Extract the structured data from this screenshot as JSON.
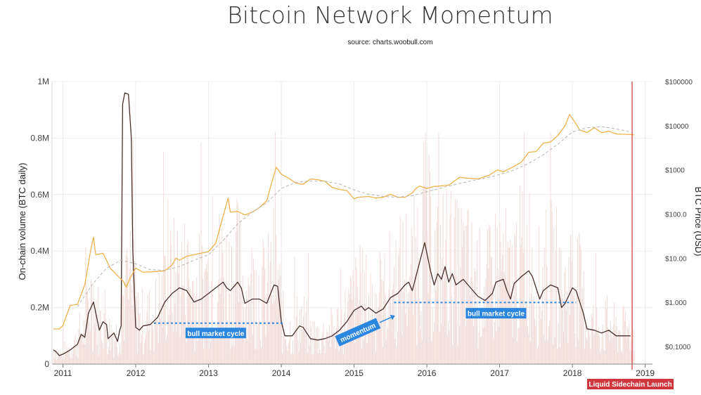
{
  "title": "Bitcoin Network Momentum",
  "subtitle": "source: charts.woobull.com",
  "chart_data": {
    "type": "line",
    "title": "Bitcoin Network Momentum",
    "subtitle": "source: charts.woobull.com",
    "ylabel": "On-chain volume (BTC daily)",
    "y2label": "BTC Price (USD)",
    "ylim": [
      0,
      1000000
    ],
    "y2lim": [
      0.04,
      100000
    ],
    "y2scale": "log",
    "xlim": [
      2010.85,
      2019.1
    ],
    "grid": true,
    "legend": "none",
    "y_ticks": [
      {
        "value": 0,
        "label": "0"
      },
      {
        "value": 200000,
        "label": "0.2M"
      },
      {
        "value": 400000,
        "label": "0.4M"
      },
      {
        "value": 600000,
        "label": "0.6M"
      },
      {
        "value": 800000,
        "label": "0.8M"
      },
      {
        "value": 1000000,
        "label": "1M"
      }
    ],
    "y2_ticks": [
      {
        "value": 0.1,
        "label": "$0.1000"
      },
      {
        "value": 1,
        "label": "$1.000"
      },
      {
        "value": 10,
        "label": "$10.00"
      },
      {
        "value": 100,
        "label": "$100.0"
      },
      {
        "value": 1000,
        "label": "$1000"
      },
      {
        "value": 10000,
        "label": "$10000"
      },
      {
        "value": 100000,
        "label": "$100000"
      }
    ],
    "x_ticks": [
      {
        "value": 2011,
        "label": "2011"
      },
      {
        "value": 2012,
        "label": "2012"
      },
      {
        "value": 2013,
        "label": "2013"
      },
      {
        "value": 2014,
        "label": "2014"
      },
      {
        "value": 2015,
        "label": "2015"
      },
      {
        "value": 2016,
        "label": "2016"
      },
      {
        "value": 2017,
        "label": "2017"
      },
      {
        "value": 2018,
        "label": "2018"
      },
      {
        "value": 2019,
        "label": "2019"
      }
    ],
    "colors": {
      "volume_momentum": "#4a2f2a",
      "price": "#f0b24a",
      "price_trend": "#b5b5b5",
      "daily_volume": "#f1ddd9",
      "grid": "#ececec",
      "annotation": "#2b86e0",
      "launch": "#d0363e"
    },
    "series": [
      {
        "key": "volume_momentum",
        "axis": "left",
        "points": [
          [
            2010.87,
            50000
          ],
          [
            2010.9,
            45000
          ],
          [
            2010.95,
            30000
          ],
          [
            2011.0,
            35000
          ],
          [
            2011.1,
            50000
          ],
          [
            2011.2,
            70000
          ],
          [
            2011.25,
            105000
          ],
          [
            2011.3,
            95000
          ],
          [
            2011.35,
            180000
          ],
          [
            2011.42,
            220000
          ],
          [
            2011.5,
            120000
          ],
          [
            2011.55,
            150000
          ],
          [
            2011.6,
            140000
          ],
          [
            2011.62,
            90000
          ],
          [
            2011.7,
            110000
          ],
          [
            2011.75,
            80000
          ],
          [
            2011.78,
            120000
          ],
          [
            2011.8,
            135000
          ],
          [
            2011.82,
            920000
          ],
          [
            2011.85,
            960000
          ],
          [
            2011.9,
            955000
          ],
          [
            2011.94,
            800000
          ],
          [
            2011.96,
            400000
          ],
          [
            2012.0,
            130000
          ],
          [
            2012.05,
            120000
          ],
          [
            2012.1,
            135000
          ],
          [
            2012.2,
            140000
          ],
          [
            2012.3,
            165000
          ],
          [
            2012.4,
            220000
          ],
          [
            2012.5,
            250000
          ],
          [
            2012.6,
            270000
          ],
          [
            2012.7,
            260000
          ],
          [
            2012.75,
            240000
          ],
          [
            2012.8,
            220000
          ],
          [
            2012.9,
            230000
          ],
          [
            2013.0,
            250000
          ],
          [
            2013.1,
            270000
          ],
          [
            2013.2,
            290000
          ],
          [
            2013.25,
            270000
          ],
          [
            2013.3,
            260000
          ],
          [
            2013.35,
            275000
          ],
          [
            2013.4,
            290000
          ],
          [
            2013.45,
            270000
          ],
          [
            2013.5,
            215000
          ],
          [
            2013.6,
            230000
          ],
          [
            2013.7,
            230000
          ],
          [
            2013.8,
            215000
          ],
          [
            2013.9,
            280000
          ],
          [
            2013.95,
            275000
          ],
          [
            2014.0,
            150000
          ],
          [
            2014.05,
            100000
          ],
          [
            2014.1,
            100000
          ],
          [
            2014.15,
            100000
          ],
          [
            2014.25,
            135000
          ],
          [
            2014.3,
            130000
          ],
          [
            2014.4,
            90000
          ],
          [
            2014.5,
            85000
          ],
          [
            2014.6,
            90000
          ],
          [
            2014.7,
            100000
          ],
          [
            2014.8,
            120000
          ],
          [
            2014.9,
            150000
          ],
          [
            2015.0,
            190000
          ],
          [
            2015.1,
            205000
          ],
          [
            2015.15,
            190000
          ],
          [
            2015.2,
            200000
          ],
          [
            2015.3,
            180000
          ],
          [
            2015.4,
            195000
          ],
          [
            2015.5,
            235000
          ],
          [
            2015.6,
            250000
          ],
          [
            2015.7,
            280000
          ],
          [
            2015.75,
            290000
          ],
          [
            2015.8,
            260000
          ],
          [
            2015.9,
            360000
          ],
          [
            2015.97,
            430000
          ],
          [
            2016.05,
            330000
          ],
          [
            2016.1,
            280000
          ],
          [
            2016.15,
            320000
          ],
          [
            2016.2,
            300000
          ],
          [
            2016.25,
            345000
          ],
          [
            2016.3,
            290000
          ],
          [
            2016.35,
            320000
          ],
          [
            2016.4,
            280000
          ],
          [
            2016.5,
            300000
          ],
          [
            2016.6,
            270000
          ],
          [
            2016.7,
            240000
          ],
          [
            2016.8,
            225000
          ],
          [
            2016.9,
            250000
          ],
          [
            2016.95,
            290000
          ],
          [
            2017.05,
            300000
          ],
          [
            2017.1,
            260000
          ],
          [
            2017.15,
            230000
          ],
          [
            2017.2,
            285000
          ],
          [
            2017.3,
            310000
          ],
          [
            2017.4,
            330000
          ],
          [
            2017.45,
            310000
          ],
          [
            2017.5,
            270000
          ],
          [
            2017.55,
            230000
          ],
          [
            2017.6,
            260000
          ],
          [
            2017.7,
            280000
          ],
          [
            2017.8,
            270000
          ],
          [
            2017.85,
            200000
          ],
          [
            2017.9,
            215000
          ],
          [
            2018.0,
            270000
          ],
          [
            2018.05,
            260000
          ],
          [
            2018.1,
            220000
          ],
          [
            2018.15,
            180000
          ],
          [
            2018.2,
            125000
          ],
          [
            2018.3,
            120000
          ],
          [
            2018.4,
            110000
          ],
          [
            2018.5,
            120000
          ],
          [
            2018.6,
            100000
          ],
          [
            2018.7,
            100000
          ],
          [
            2018.8,
            100000
          ]
        ]
      },
      {
        "key": "price",
        "axis": "right",
        "points": [
          [
            2010.87,
            0.25
          ],
          [
            2010.95,
            0.25
          ],
          [
            2011.0,
            0.3
          ],
          [
            2011.1,
            0.85
          ],
          [
            2011.2,
            0.9
          ],
          [
            2011.3,
            2.5
          ],
          [
            2011.38,
            15
          ],
          [
            2011.42,
            30
          ],
          [
            2011.45,
            12
          ],
          [
            2011.55,
            13
          ],
          [
            2011.65,
            6
          ],
          [
            2011.75,
            4
          ],
          [
            2011.83,
            3
          ],
          [
            2011.87,
            2.2
          ],
          [
            2011.92,
            3.5
          ],
          [
            2012.0,
            6
          ],
          [
            2012.1,
            4.8
          ],
          [
            2012.2,
            4.9
          ],
          [
            2012.3,
            5
          ],
          [
            2012.4,
            5.2
          ],
          [
            2012.5,
            7
          ],
          [
            2012.55,
            10
          ],
          [
            2012.6,
            9
          ],
          [
            2012.7,
            11
          ],
          [
            2012.8,
            12
          ],
          [
            2012.9,
            13
          ],
          [
            2013.0,
            14
          ],
          [
            2013.1,
            22
          ],
          [
            2013.2,
            90
          ],
          [
            2013.27,
            230
          ],
          [
            2013.3,
            110
          ],
          [
            2013.4,
            115
          ],
          [
            2013.5,
            95
          ],
          [
            2013.6,
            110
          ],
          [
            2013.7,
            140
          ],
          [
            2013.8,
            200
          ],
          [
            2013.85,
            400
          ],
          [
            2013.93,
            1150
          ],
          [
            2014.0,
            800
          ],
          [
            2014.1,
            650
          ],
          [
            2014.2,
            500
          ],
          [
            2014.3,
            470
          ],
          [
            2014.4,
            620
          ],
          [
            2014.5,
            600
          ],
          [
            2014.6,
            550
          ],
          [
            2014.7,
            400
          ],
          [
            2014.8,
            360
          ],
          [
            2014.9,
            340
          ],
          [
            2015.0,
            220
          ],
          [
            2015.05,
            240
          ],
          [
            2015.2,
            250
          ],
          [
            2015.3,
            230
          ],
          [
            2015.4,
            240
          ],
          [
            2015.5,
            280
          ],
          [
            2015.6,
            240
          ],
          [
            2015.7,
            240
          ],
          [
            2015.8,
            300
          ],
          [
            2015.85,
            380
          ],
          [
            2015.9,
            430
          ],
          [
            2016.0,
            380
          ],
          [
            2016.1,
            420
          ],
          [
            2016.3,
            450
          ],
          [
            2016.45,
            680
          ],
          [
            2016.55,
            650
          ],
          [
            2016.7,
            620
          ],
          [
            2016.85,
            750
          ],
          [
            2016.97,
            1000
          ],
          [
            2017.05,
            900
          ],
          [
            2017.2,
            1200
          ],
          [
            2017.3,
            1500
          ],
          [
            2017.4,
            2500
          ],
          [
            2017.5,
            2600
          ],
          [
            2017.6,
            4000
          ],
          [
            2017.7,
            4300
          ],
          [
            2017.8,
            6000
          ],
          [
            2017.9,
            10000
          ],
          [
            2017.96,
            18000
          ],
          [
            2018.05,
            11000
          ],
          [
            2018.1,
            8000
          ],
          [
            2018.2,
            7000
          ],
          [
            2018.3,
            9000
          ],
          [
            2018.4,
            7000
          ],
          [
            2018.5,
            7500
          ],
          [
            2018.6,
            6500
          ],
          [
            2018.7,
            6400
          ],
          [
            2018.8,
            6300
          ],
          [
            2018.85,
            6200
          ]
        ]
      },
      {
        "key": "price_trend",
        "axis": "right",
        "points": [
          [
            2011.2,
            0.8
          ],
          [
            2011.4,
            2.5
          ],
          [
            2011.6,
            6
          ],
          [
            2011.8,
            9
          ],
          [
            2012.0,
            7.5
          ],
          [
            2012.2,
            5.5
          ],
          [
            2012.4,
            5.3
          ],
          [
            2012.6,
            6.5
          ],
          [
            2012.8,
            9
          ],
          [
            2013.0,
            12
          ],
          [
            2013.2,
            25
          ],
          [
            2013.4,
            60
          ],
          [
            2013.6,
            110
          ],
          [
            2013.8,
            180
          ],
          [
            2014.0,
            380
          ],
          [
            2014.2,
            520
          ],
          [
            2014.4,
            560
          ],
          [
            2014.6,
            550
          ],
          [
            2014.8,
            480
          ],
          [
            2015.0,
            350
          ],
          [
            2015.2,
            280
          ],
          [
            2015.4,
            250
          ],
          [
            2015.6,
            240
          ],
          [
            2015.8,
            260
          ],
          [
            2016.0,
            320
          ],
          [
            2016.2,
            390
          ],
          [
            2016.4,
            470
          ],
          [
            2016.6,
            560
          ],
          [
            2016.8,
            650
          ],
          [
            2017.0,
            780
          ],
          [
            2017.2,
            1000
          ],
          [
            2017.4,
            1400
          ],
          [
            2017.6,
            2200
          ],
          [
            2017.8,
            3800
          ],
          [
            2018.0,
            7200
          ],
          [
            2018.2,
            9000
          ],
          [
            2018.4,
            9500
          ],
          [
            2018.6,
            8500
          ],
          [
            2018.8,
            7200
          ]
        ]
      }
    ],
    "annotations": [
      {
        "key": "bull_market_cycle_1",
        "label": "bull market cycle",
        "x_start": 2012.25,
        "x_end": 2014.02,
        "y": 145000,
        "label_x": 2013.1,
        "label_y": 110000
      },
      {
        "key": "bull_market_cycle_2",
        "label": "bull market cycle",
        "x_start": 2015.55,
        "x_end": 2018.05,
        "y": 218000,
        "label_x": 2016.95,
        "label_y": 180000
      },
      {
        "key": "momentum",
        "label": "momentum",
        "x_start": 2014.78,
        "x_end": 2015.5,
        "y_start": 78000,
        "y_end": 160000
      }
    ],
    "marker": {
      "label": "Liquid Sidechain Launch",
      "x": 2018.82
    },
    "daily_volume": {
      "note": "light background daily on-chain volume bars"
    }
  }
}
